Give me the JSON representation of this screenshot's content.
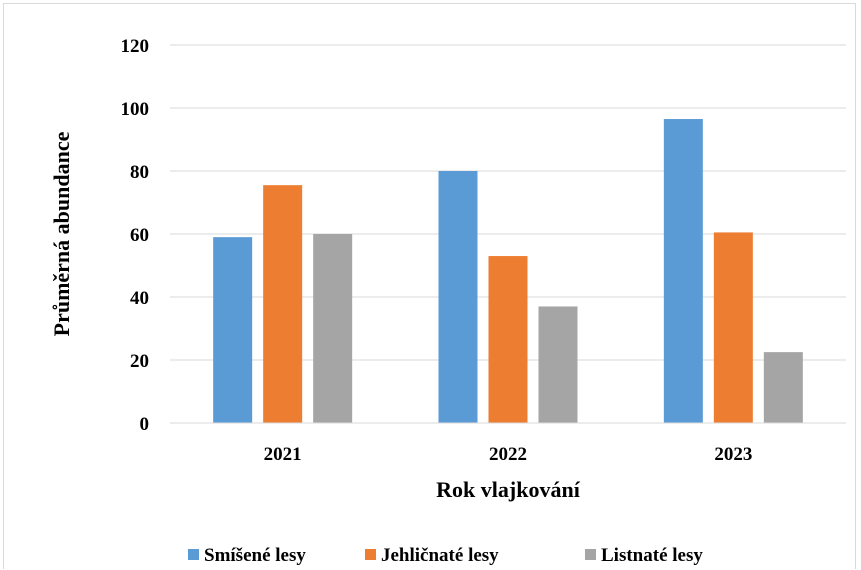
{
  "chart_data": {
    "type": "bar",
    "title": "",
    "xlabel": "Rok vlajkování",
    "ylabel": "Průměrná abundance",
    "categories": [
      "2021",
      "2022",
      "2023"
    ],
    "series": [
      {
        "name": "Smíšené lesy",
        "color": "#5b9bd5",
        "values": [
          59,
          80,
          96.5
        ]
      },
      {
        "name": "Jehličnaté lesy",
        "color": "#ed7d31",
        "values": [
          75.5,
          53,
          60.5
        ]
      },
      {
        "name": "Listnaté lesy",
        "color": "#a5a5a5",
        "values": [
          60,
          37,
          22.5
        ]
      }
    ],
    "ylim": [
      0,
      120
    ],
    "yticks": [
      "0",
      "20",
      "40",
      "60",
      "80",
      "100",
      "120"
    ],
    "grid": true,
    "gridline_color": "#d9d9d9",
    "legend_position": "bottom"
  }
}
